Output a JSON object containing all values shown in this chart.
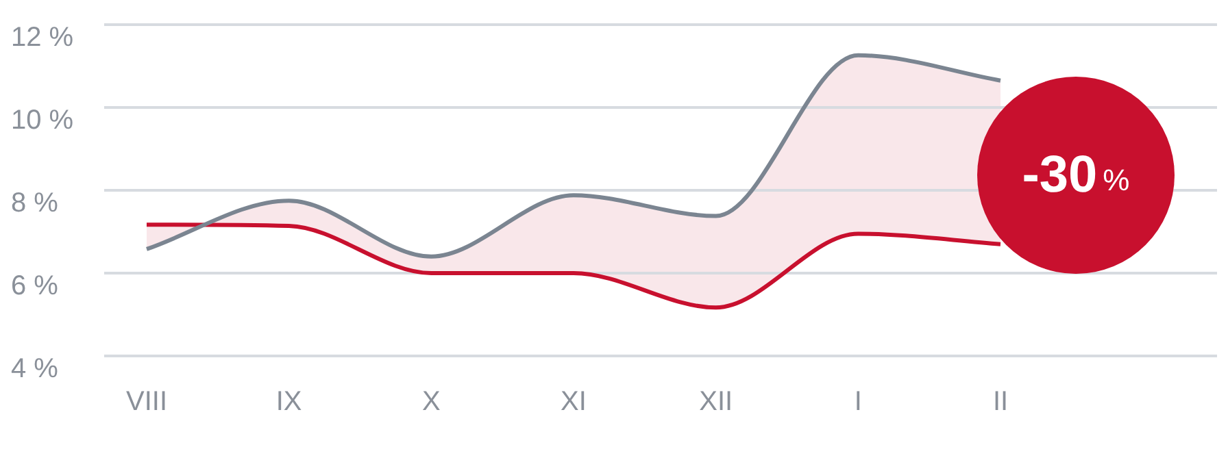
{
  "chart_data": {
    "type": "line",
    "categories": [
      "VIII",
      "IX",
      "X",
      "XI",
      "XII",
      "I",
      "II"
    ],
    "series": [
      {
        "color": "#7b8591",
        "values": [
          6.58,
          7.75,
          6.4,
          7.88,
          7.38,
          11.26,
          10.65
        ]
      },
      {
        "color": "#c8102e",
        "values": [
          7.17,
          7.14,
          6.0,
          6.0,
          5.17,
          6.95,
          6.7
        ],
        "lower": [
          7.17,
          7.14,
          6.0,
          6.0,
          5.17,
          6.95,
          6.7
        ],
        "upper": [
          6.58,
          7.75,
          6.4,
          7.88,
          7.38,
          11.26,
          10.65
        ]
      }
    ],
    "ylim": [
      4,
      12
    ],
    "yticks": [
      {
        "value": 4,
        "label": "4 %"
      },
      {
        "value": 6,
        "label": "6 %"
      },
      {
        "value": 8,
        "label": "8 %"
      },
      {
        "value": 10,
        "label": "10 %"
      },
      {
        "value": 12,
        "label": "12 %"
      }
    ],
    "grid": "y",
    "legend": false,
    "marker": "none",
    "line_style": "solid",
    "annotations": [
      "-30%"
    ]
  }
}
